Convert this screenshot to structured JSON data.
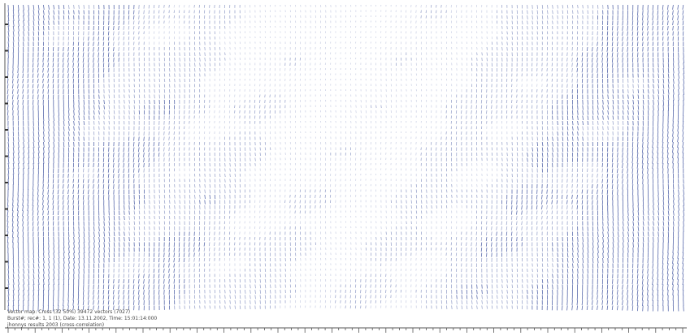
{
  "caption": {
    "lines": [
      "Vector map: Cross (32 50%) 39472 vectors (7027)",
      "Burst#; rec#: 1, 1 (1), Date: 13.11.2002, Time: 15:01:14:000",
      "jhonnys results 2003 (cross-correlation)"
    ]
  }
}
